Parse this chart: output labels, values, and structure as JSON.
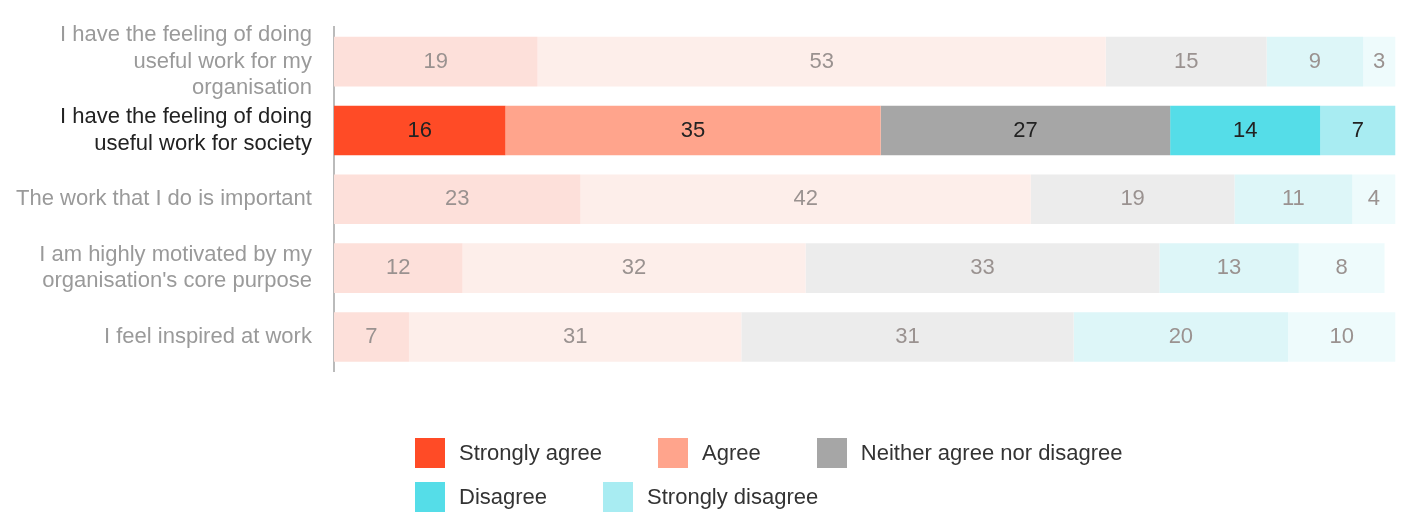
{
  "chart_data": {
    "type": "bar",
    "orientation": "horizontal",
    "stacked": true,
    "data_labels": true,
    "legend": "bottom",
    "tick_labels": "y",
    "categories": [
      "I have the feeling of doing useful work for my organisation",
      "I have the feeling of doing useful work for society",
      "The work that I do is important",
      "I am highly motivated by my organisation's core purpose",
      "I feel inspired at work"
    ],
    "series": [
      {
        "name": "Strongly agree",
        "color": "#ff4b26",
        "colors": [
          "#fde0da",
          "#ff4b26",
          "#fde0da",
          "#fde0da",
          "#fde0da"
        ],
        "values": [
          19,
          16,
          23,
          12,
          7
        ]
      },
      {
        "name": "Agree",
        "color": "#ffa48c",
        "colors": [
          "#fdeeea",
          "#ffa48c",
          "#fdeeea",
          "#fdeeea",
          "#fdeeea"
        ],
        "values": [
          53,
          35,
          42,
          32,
          31
        ]
      },
      {
        "name": "Neither agree nor disagree",
        "color": "#a6a6a6",
        "colors": [
          "#ececec",
          "#a6a6a6",
          "#ececec",
          "#ececec",
          "#ececec"
        ],
        "values": [
          15,
          27,
          19,
          33,
          31
        ]
      },
      {
        "name": "Disagree",
        "color": "#55dde8",
        "colors": [
          "#ddf6f8",
          "#55dde8",
          "#ddf6f8",
          "#ddf6f8",
          "#ddf6f8"
        ],
        "values": [
          9,
          14,
          11,
          13,
          20
        ]
      },
      {
        "name": "Strongly disagree",
        "color": "#a8ecf2",
        "colors": [
          "#eefbfc",
          "#a8ecf2",
          "#eefbfc",
          "#eefbfc",
          "#eefbfc"
        ],
        "values": [
          3,
          7,
          4,
          8,
          10
        ]
      }
    ]
  }
}
